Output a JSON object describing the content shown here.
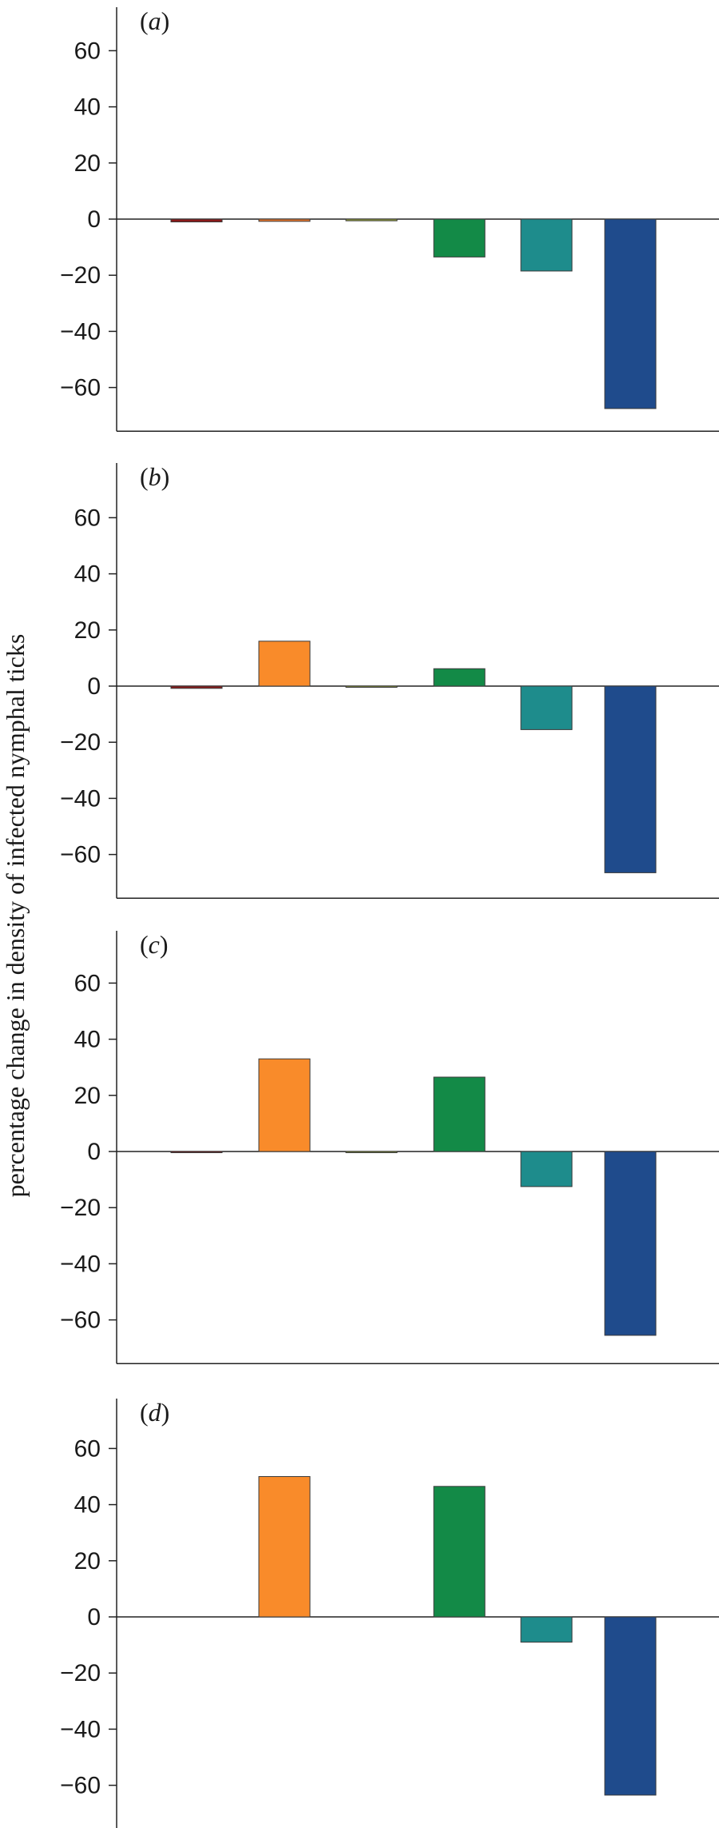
{
  "ylabel": "percentage change in density of infected nymphal ticks",
  "chart_data": [
    {
      "type": "bar",
      "panel": "(a)",
      "panel_letter": "a",
      "yticks": [
        60,
        40,
        20,
        0,
        -20,
        -40,
        -60
      ],
      "ylim": [
        -75,
        75
      ],
      "values": [
        -1,
        -0.8,
        -0.6,
        -13.5,
        -18.5,
        -67.5
      ],
      "colors": [
        "#8b1a1a",
        "#e8762c",
        "#9aa83c",
        "#138a47",
        "#1e8c8c",
        "#1f4b8c"
      ]
    },
    {
      "type": "bar",
      "panel": "(b)",
      "panel_letter": "b",
      "yticks": [
        60,
        40,
        20,
        0,
        -20,
        -40,
        -60
      ],
      "ylim": [
        -75,
        75
      ],
      "values": [
        -0.8,
        16,
        -0.4,
        6.2,
        -15.5,
        -66.5
      ],
      "colors": [
        "#8b1a1a",
        "#f98b2a",
        "#9aa83c",
        "#138a47",
        "#1e8c8c",
        "#1f4b8c"
      ]
    },
    {
      "type": "bar",
      "panel": "(c)",
      "panel_letter": "c",
      "yticks": [
        60,
        40,
        20,
        0,
        -20,
        -40,
        -60
      ],
      "ylim": [
        -75,
        75
      ],
      "values": [
        -0.2,
        33,
        -0.2,
        26.5,
        -12.5,
        -65.5
      ],
      "colors": [
        "#8b1a1a",
        "#f98b2a",
        "#9aa83c",
        "#138a47",
        "#1e8c8c",
        "#1f4b8c"
      ]
    },
    {
      "type": "bar",
      "panel": "(d)",
      "panel_letter": "d",
      "yticks": [
        60,
        40,
        20,
        0,
        -20,
        -40,
        -60
      ],
      "ylim": [
        -75,
        75
      ],
      "values": [
        0,
        50,
        0,
        46.5,
        -9,
        -63.5
      ],
      "colors": [
        "#8b1a1a",
        "#f98b2a",
        "#9aa83c",
        "#138a47",
        "#1e8c8c",
        "#1f4b8c"
      ]
    }
  ]
}
